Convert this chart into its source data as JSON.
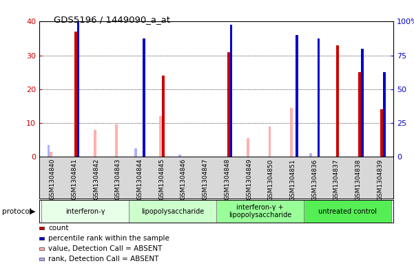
{
  "title": "GDS5196 / 1449090_a_at",
  "samples": [
    "GSM1304840",
    "GSM1304841",
    "GSM1304842",
    "GSM1304843",
    "GSM1304844",
    "GSM1304845",
    "GSM1304846",
    "GSM1304847",
    "GSM1304848",
    "GSM1304849",
    "GSM1304850",
    "GSM1304851",
    "GSM1304836",
    "GSM1304837",
    "GSM1304838",
    "GSM1304839"
  ],
  "count_values": [
    0,
    37,
    0,
    0,
    0,
    24,
    0,
    0,
    31,
    0,
    0,
    0,
    0,
    33,
    25,
    14
  ],
  "percentile_values": [
    0,
    44,
    0,
    0,
    35,
    0,
    0,
    0,
    39,
    0,
    0,
    36,
    35,
    0,
    32,
    25
  ],
  "absent_value_values": [
    1.5,
    0,
    8,
    9.5,
    0,
    12,
    0,
    0,
    0,
    5.5,
    9,
    14.5,
    0,
    0,
    0,
    0
  ],
  "absent_rank_values": [
    3.5,
    0,
    0,
    0,
    2.5,
    0,
    0.5,
    0,
    0,
    0,
    0,
    0,
    1,
    0,
    0,
    0
  ],
  "protocols": [
    {
      "label": "interferon-γ",
      "start": 0,
      "end": 4,
      "color": "#e8ffe8"
    },
    {
      "label": "lipopolysaccharide",
      "start": 4,
      "end": 8,
      "color": "#ccffcc"
    },
    {
      "label": "interferon-γ +\nlipopolysaccharide",
      "start": 8,
      "end": 12,
      "color": "#99ff99"
    },
    {
      "label": "untreated control",
      "start": 12,
      "end": 16,
      "color": "#55ee55"
    }
  ],
  "ylim_left": [
    0,
    40
  ],
  "ylim_right": [
    0,
    100
  ],
  "yticks_left": [
    0,
    10,
    20,
    30,
    40
  ],
  "yticks_right": [
    0,
    25,
    50,
    75,
    100
  ],
  "color_count": "#cc0000",
  "color_percentile": "#0000cc",
  "color_absent_value": "#ffb0b0",
  "color_absent_rank": "#b0b0ff",
  "bar_width": 0.12,
  "legend_items": [
    {
      "color": "#cc0000",
      "label": "count"
    },
    {
      "color": "#0000cc",
      "label": "percentile rank within the sample"
    },
    {
      "color": "#ffb0b0",
      "label": "value, Detection Call = ABSENT"
    },
    {
      "color": "#b0b0ff",
      "label": "rank, Detection Call = ABSENT"
    }
  ]
}
